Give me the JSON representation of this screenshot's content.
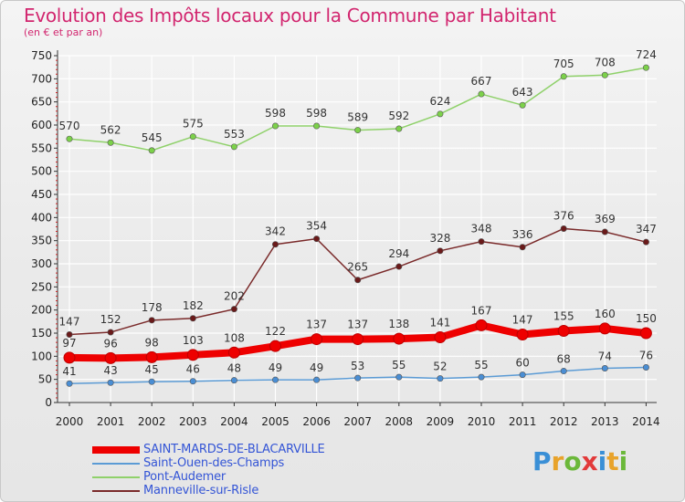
{
  "title": "Evolution des Impôts locaux pour la Commune par Habitant",
  "subtitle": "(en € et par an)",
  "logo": {
    "text": "Proxiti",
    "colors": [
      "#3a8fd6",
      "#e8a32b",
      "#6bb83a",
      "#e23a3a",
      "#3a8fd6",
      "#e8a32b",
      "#6bb83a"
    ]
  },
  "chart_data": {
    "type": "line",
    "x": [
      2000,
      2001,
      2002,
      2003,
      2004,
      2005,
      2006,
      2007,
      2008,
      2009,
      2010,
      2011,
      2012,
      2013,
      2014
    ],
    "xlabels": [
      "2000",
      "2001",
      "2002",
      "2003",
      "2004",
      "2005",
      "2006",
      "2007",
      "2008",
      "2009",
      "2010",
      "2011",
      "2012",
      "2013",
      "2014"
    ],
    "ylim": [
      0,
      750
    ],
    "yticks": [
      0,
      50,
      100,
      150,
      200,
      250,
      300,
      350,
      400,
      450,
      500,
      550,
      600,
      650,
      700,
      750
    ],
    "ytick_labels": [
      "0",
      "50",
      "100",
      "150",
      "200",
      "250",
      "300",
      "350",
      "400",
      "450",
      "500",
      "550",
      "600",
      "650",
      "700",
      "750"
    ],
    "grid": true,
    "legend_position": "bottom-left",
    "series": [
      {
        "name": "SAINT-MARDS-DE-BLACARVILLE",
        "color": "#ee0000",
        "marker_color": "#ee0000",
        "emphasis": true,
        "values": [
          97,
          96,
          98,
          103,
          108,
          122,
          137,
          137,
          138,
          141,
          167,
          147,
          155,
          160,
          150
        ]
      },
      {
        "name": "Saint-Ouen-des-Champs",
        "color": "#5b9bd5",
        "marker_color": "#4a8ed4",
        "emphasis": false,
        "values": [
          41,
          43,
          45,
          46,
          48,
          49,
          49,
          53,
          55,
          52,
          55,
          60,
          68,
          74,
          76
        ]
      },
      {
        "name": "Pont-Audemer",
        "color": "#8fd16a",
        "marker_color": "#7cd14a",
        "emphasis": false,
        "values": [
          570,
          562,
          545,
          575,
          553,
          598,
          598,
          589,
          592,
          624,
          667,
          643,
          705,
          708,
          724
        ]
      },
      {
        "name": "Manneville-sur-Risle",
        "color": "#7a2a2a",
        "marker_color": "#6a1a1a",
        "emphasis": false,
        "values": [
          147,
          152,
          178,
          182,
          202,
          342,
          354,
          265,
          294,
          328,
          348,
          336,
          376,
          369,
          347
        ]
      }
    ]
  }
}
